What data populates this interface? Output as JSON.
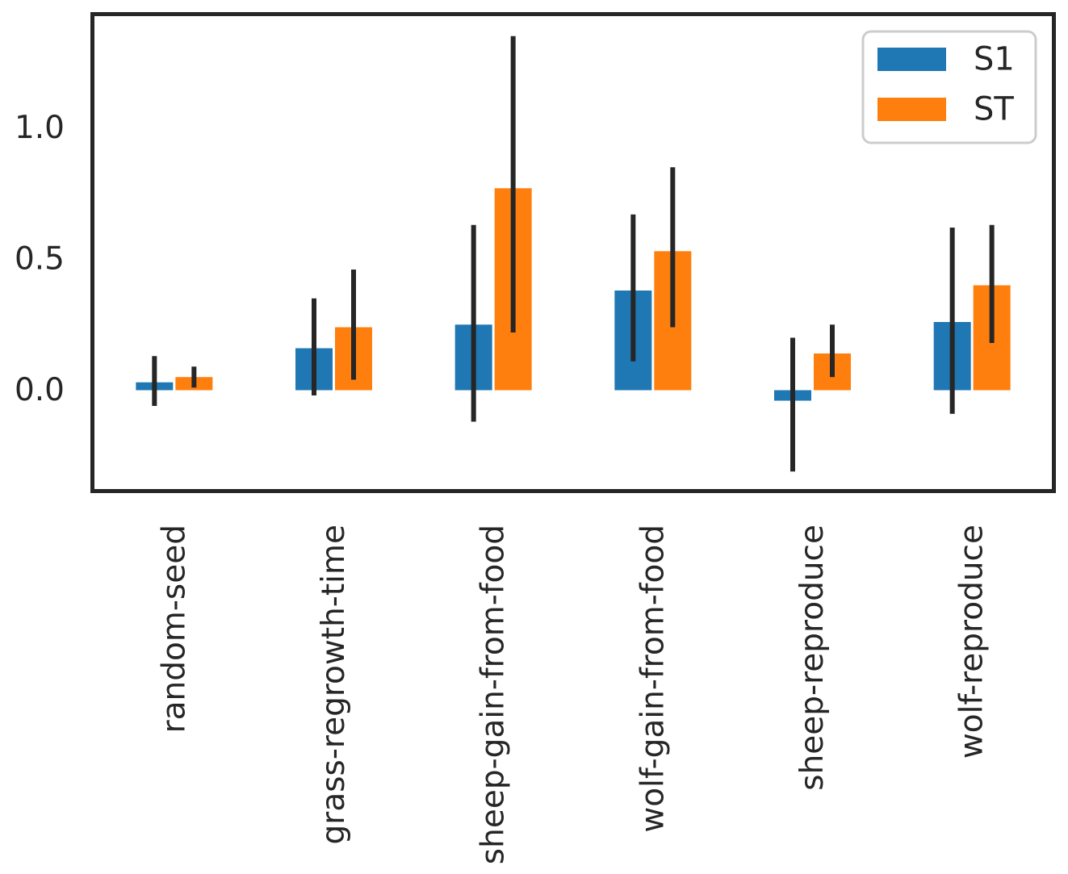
{
  "figure": {
    "background": "#ffffff"
  },
  "colors": {
    "spine": "#262626",
    "text": "#262626",
    "error_bar": "#262626",
    "legend_border": "#cccccc",
    "legend_background": "#ffffff"
  },
  "legend": {
    "position": "upper-right",
    "items": [
      {
        "label": "S1",
        "color": "#1f77b4"
      },
      {
        "label": "ST",
        "color": "#ff7f0e"
      }
    ]
  },
  "chart_data": {
    "type": "bar",
    "title": "",
    "xlabel": "",
    "ylabel": "",
    "grid": false,
    "legend_position": "upper right",
    "categories": [
      "random-seed",
      "grass-regrowth-time",
      "sheep-gain-from-food",
      "wolf-gain-from-food",
      "sheep-reproduce",
      "wolf-reproduce"
    ],
    "series": [
      {
        "name": "S1",
        "color": "#1f77b4",
        "values": [
          0.03,
          0.16,
          0.25,
          0.38,
          -0.04,
          0.26
        ],
        "err_low": [
          -0.06,
          -0.02,
          -0.12,
          0.11,
          -0.31,
          -0.09
        ],
        "err_high": [
          0.13,
          0.35,
          0.63,
          0.67,
          0.2,
          0.62
        ]
      },
      {
        "name": "ST",
        "color": "#ff7f0e",
        "values": [
          0.05,
          0.24,
          0.77,
          0.53,
          0.14,
          0.4
        ],
        "err_low": [
          0.01,
          0.04,
          0.22,
          0.24,
          0.05,
          0.18
        ],
        "err_high": [
          0.09,
          0.46,
          1.35,
          0.85,
          0.25,
          0.63
        ]
      }
    ],
    "yticks": {
      "labels": [
        "0.0",
        "0.5",
        "1.0"
      ],
      "values": [
        0.0,
        0.5,
        1.0
      ]
    },
    "ylim": [
      -0.38,
      1.43
    ]
  }
}
